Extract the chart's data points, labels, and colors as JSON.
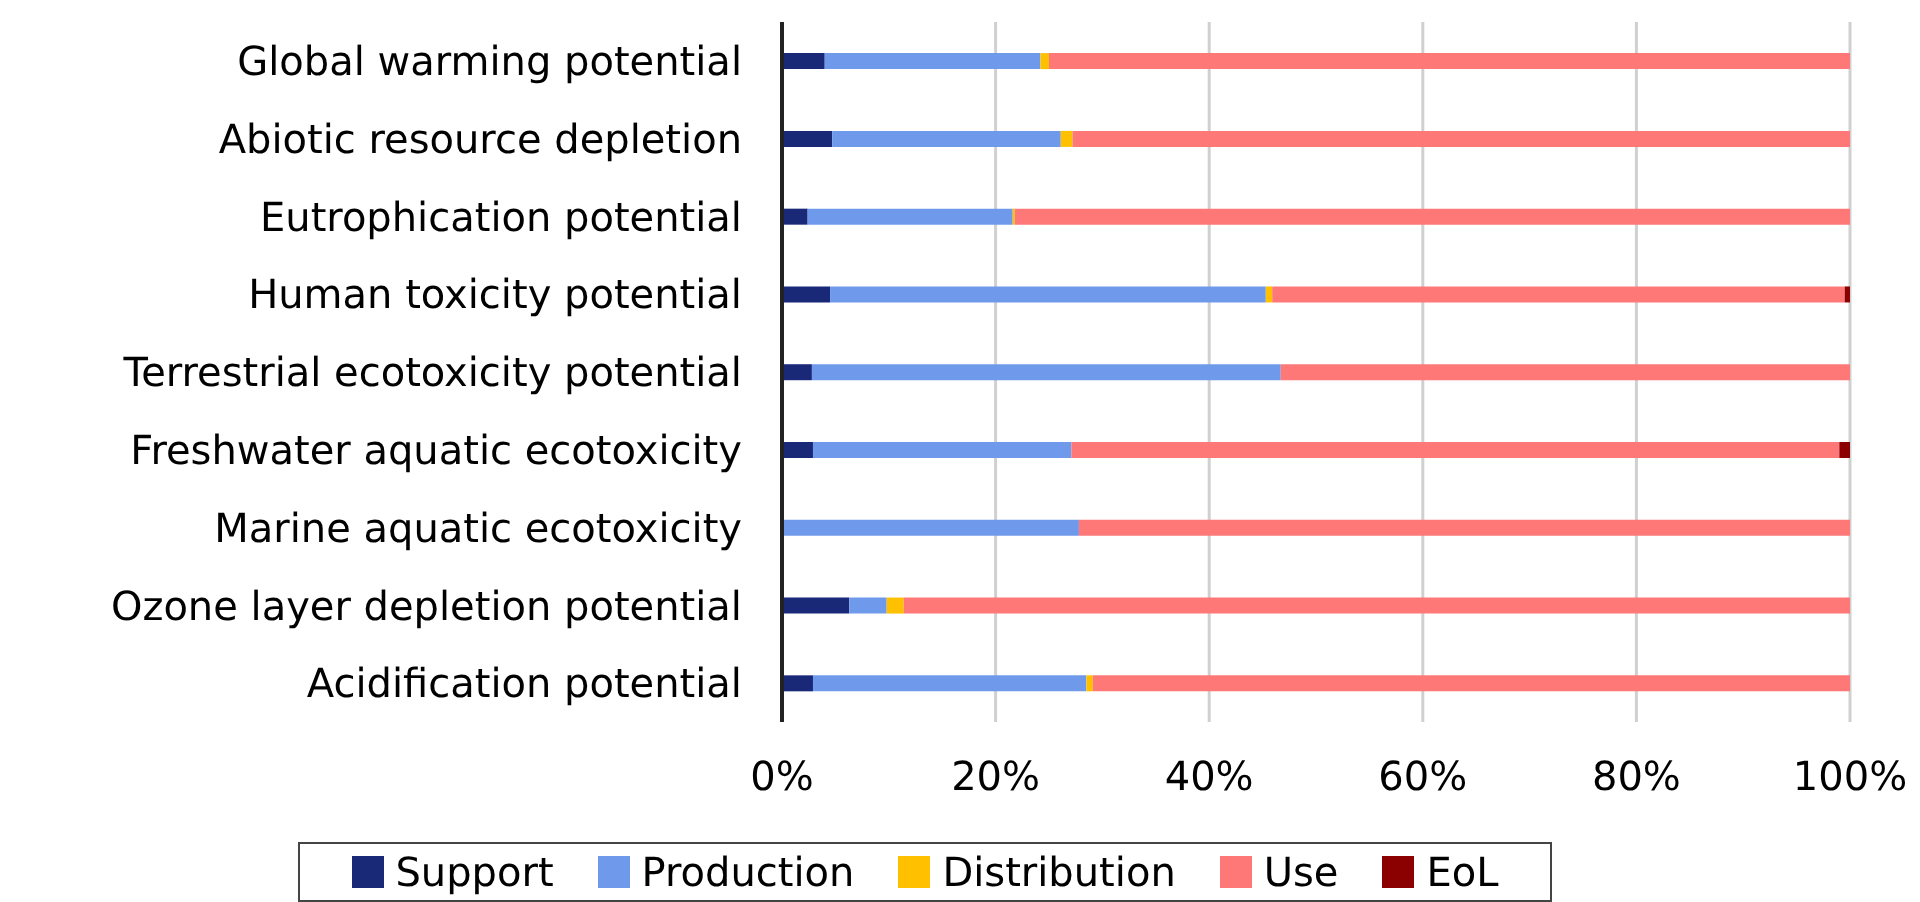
{
  "chart_data": {
    "type": "bar",
    "orientation": "horizontal",
    "stacked": true,
    "categories": [
      "Global warming potential",
      "Abiotic resource depletion",
      "Eutrophication potential",
      "Human toxicity potential",
      "Terrestrial ecotoxicity potential",
      "Freshwater aquatic ecotoxicity",
      "Marine aquatic ecotoxicity",
      "Ozone layer depletion potential",
      "Acidification potential"
    ],
    "series": [
      {
        "name": "Support",
        "color": "#1a2878",
        "values": [
          4.0,
          4.7,
          2.4,
          4.5,
          2.8,
          2.9,
          0,
          6.3,
          2.9
        ]
      },
      {
        "name": "Production",
        "color": "#6f9aec",
        "values": [
          20.2,
          21.4,
          19.2,
          40.8,
          43.9,
          24.2,
          27.8,
          3.5,
          25.6
        ]
      },
      {
        "name": "Distribution",
        "color": "#ffc000",
        "values": [
          0.8,
          1.1,
          0.2,
          0.6,
          0,
          0,
          0,
          1.6,
          0.6
        ]
      },
      {
        "name": "Use",
        "color": "#ff7878",
        "values": [
          75.0,
          72.8,
          78.2,
          53.6,
          53.3,
          71.9,
          72.2,
          88.6,
          70.9
        ]
      },
      {
        "name": "EoL",
        "color": "#8b0000",
        "values": [
          0,
          0,
          0,
          0.5,
          0,
          1.0,
          0,
          0,
          0
        ]
      }
    ],
    "xlim": [
      0,
      100
    ],
    "xticks": [
      {
        "value": 0,
        "label": "0%"
      },
      {
        "value": 20,
        "label": "20%"
      },
      {
        "value": 40,
        "label": "40%"
      },
      {
        "value": 60,
        "label": "60%"
      },
      {
        "value": 80,
        "label": "80%"
      },
      {
        "value": 100,
        "label": "100%"
      }
    ],
    "grid": "x",
    "legend": "bottom"
  }
}
